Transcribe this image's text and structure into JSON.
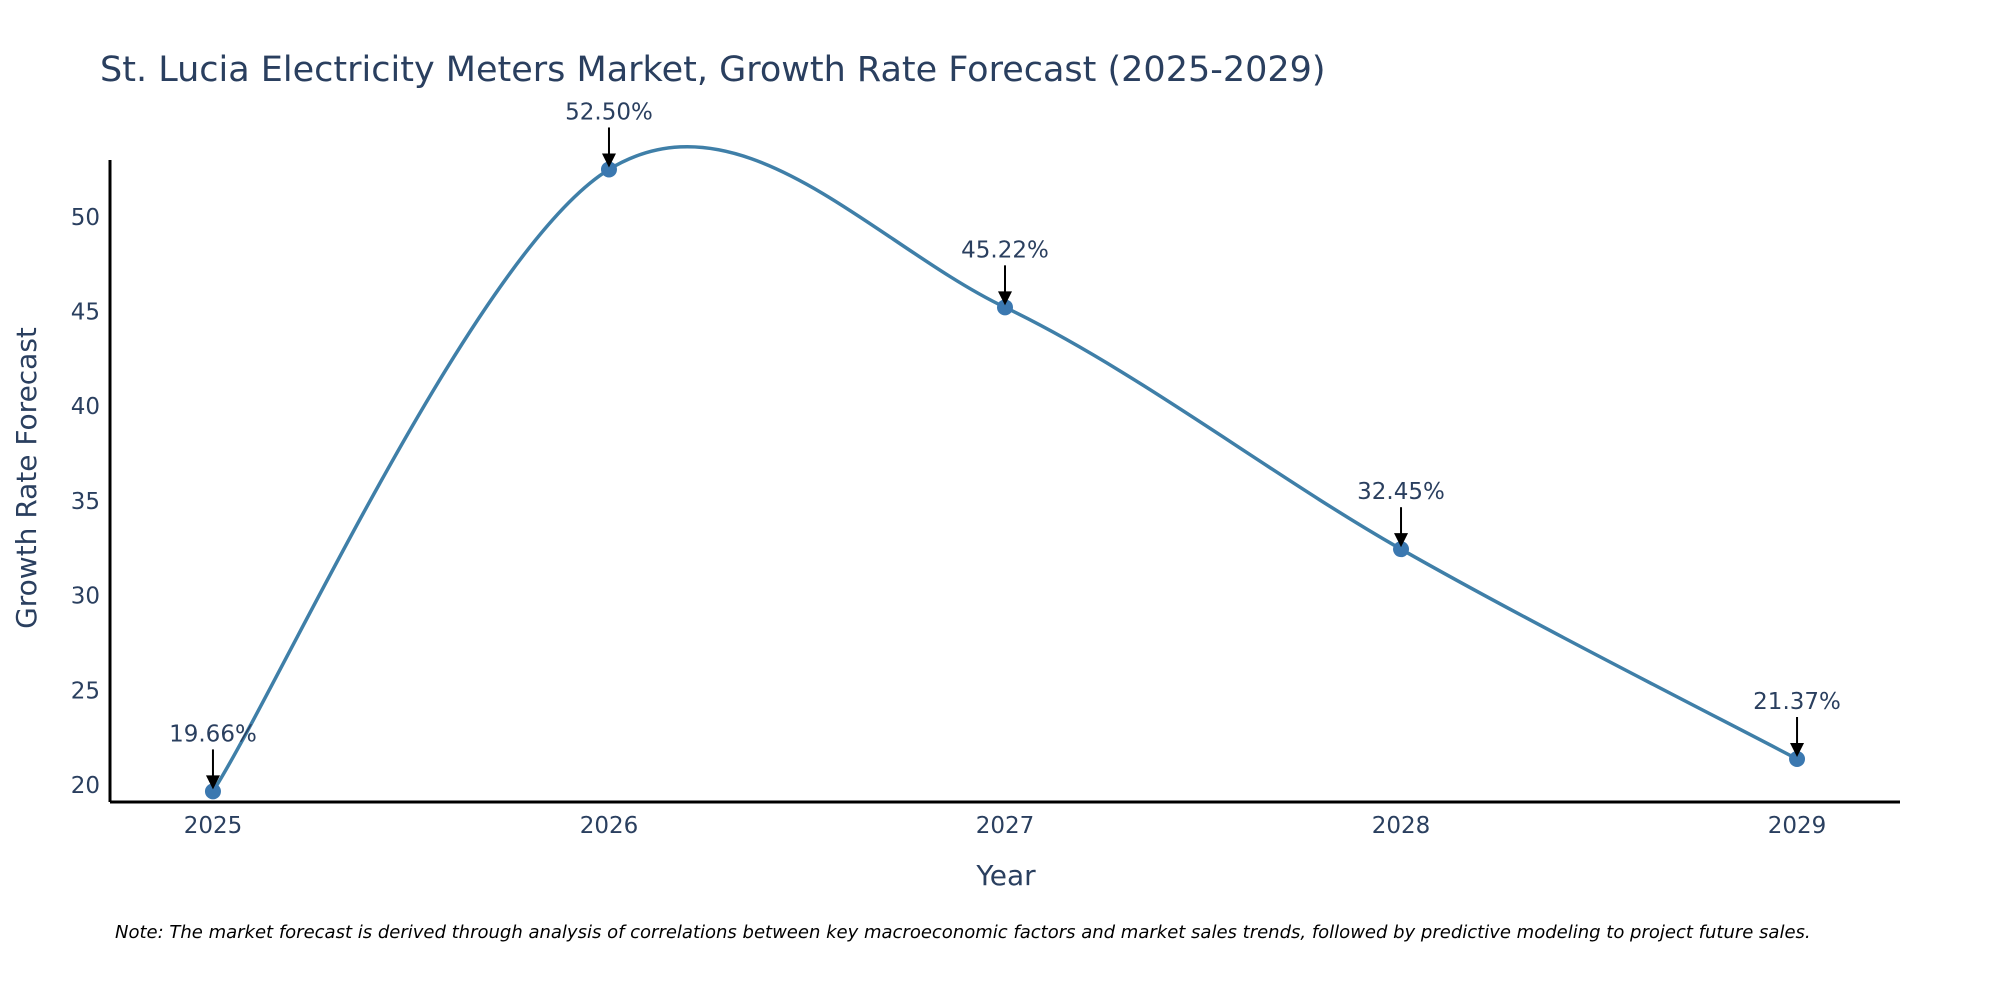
{
  "chart_data": {
    "type": "line",
    "title": "St. Lucia Electricity Meters Market, Growth Rate Forecast (2025-2029)",
    "xlabel": "Year",
    "ylabel": "Growth Rate Forecast",
    "categories": [
      "2025",
      "2026",
      "2027",
      "2028",
      "2029"
    ],
    "series": [
      {
        "name": "Growth Rate Forecast",
        "values": [
          19.66,
          52.5,
          45.22,
          32.45,
          21.37
        ],
        "labels": [
          "19.66%",
          "52.50%",
          "45.22%",
          "32.45%",
          "21.37%"
        ]
      }
    ],
    "yticks": [
      20,
      25,
      30,
      35,
      40,
      45,
      50
    ],
    "ylim": [
      19.1,
      53.0
    ],
    "xlim": [
      -0.26,
      4.26
    ],
    "grid": false,
    "line_shape": "spline",
    "colors": {
      "line": "#3f7fa8",
      "marker": "#3b78b0",
      "axis": "#000000",
      "text": "#2a3f5f",
      "arrow": "#000000",
      "note": "#000000"
    }
  },
  "note": "Note: The market forecast is derived through analysis of correlations between key macroeconomic factors and market sales trends, followed by predictive modeling to project future sales."
}
